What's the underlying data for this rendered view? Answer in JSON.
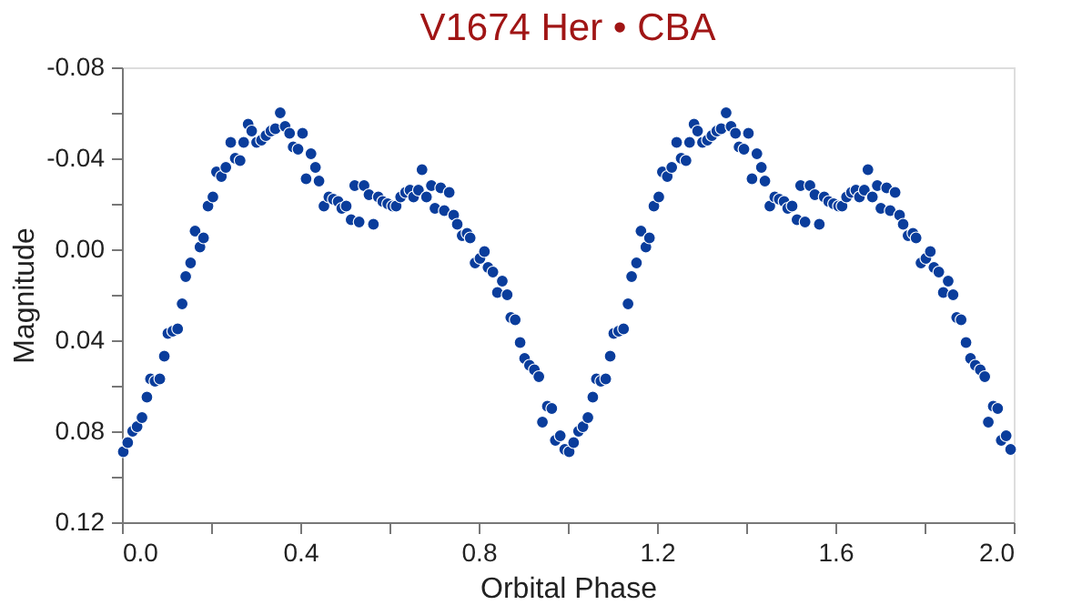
{
  "chart_data": {
    "type": "scatter",
    "title": "V1674 Her • CBA",
    "xlabel": "Orbital Phase",
    "ylabel": "Magnitude",
    "marker": "circle",
    "grid": false,
    "xlim": [
      0,
      2
    ],
    "ylim": [
      0.12,
      -0.08
    ],
    "xticks": [
      {
        "value": 0,
        "label": "0.0"
      },
      {
        "value": 0.2,
        "label": null
      },
      {
        "value": 0.4,
        "label": "0.4"
      },
      {
        "value": 0.6,
        "label": null
      },
      {
        "value": 0.8,
        "label": "0.8"
      },
      {
        "value": 1.0,
        "label": null
      },
      {
        "value": 1.2,
        "label": "1.2"
      },
      {
        "value": 1.4,
        "label": null
      },
      {
        "value": 1.6,
        "label": "1.6"
      },
      {
        "value": 1.8,
        "label": null
      },
      {
        "value": 2.0,
        "label": "2.0"
      }
    ],
    "yticks": [
      {
        "value": -0.08,
        "label": "-0.08"
      },
      {
        "value": -0.06,
        "label": null
      },
      {
        "value": -0.04,
        "label": "-0.04"
      },
      {
        "value": -0.02,
        "label": null
      },
      {
        "value": 0,
        "label": "0.00"
      },
      {
        "value": 0.02,
        "label": null
      },
      {
        "value": 0.04,
        "label": "0.04"
      },
      {
        "value": 0.06,
        "label": null
      },
      {
        "value": 0.08,
        "label": "0.08"
      },
      {
        "value": 0.1,
        "label": null
      },
      {
        "value": 0.12,
        "label": "0.12"
      }
    ],
    "series": [
      {
        "color": "#0a3d9c",
        "x": [
          0.003,
          0.013,
          0.024,
          0.034,
          0.045,
          0.056,
          0.064,
          0.074,
          0.085,
          0.095,
          0.103,
          0.114,
          0.125,
          0.135,
          0.143,
          0.154,
          0.164,
          0.175,
          0.183,
          0.193,
          0.204,
          0.212,
          0.223,
          0.233,
          0.244,
          0.254,
          0.265,
          0.273,
          0.283,
          0.291,
          0.302,
          0.313,
          0.323,
          0.334,
          0.344,
          0.355,
          0.366,
          0.376,
          0.384,
          0.395,
          0.405,
          0.413,
          0.424,
          0.434,
          0.442,
          0.453,
          0.464,
          0.474,
          0.485,
          0.493,
          0.503,
          0.514,
          0.522,
          0.532,
          0.543,
          0.554,
          0.564,
          0.575,
          0.585,
          0.596,
          0.607,
          0.615,
          0.625,
          0.636,
          0.646,
          0.654,
          0.665,
          0.673,
          0.683,
          0.694,
          0.702,
          0.715,
          0.723,
          0.734,
          0.744,
          0.752,
          0.763,
          0.774,
          0.781,
          0.792,
          0.803,
          0.813,
          0.821,
          0.832,
          0.842,
          0.853,
          0.864,
          0.872,
          0.882,
          0.893,
          0.903,
          0.914,
          0.925,
          0.935,
          0.943,
          0.954,
          0.964,
          0.972,
          0.983,
          0.993,
          1.003,
          1.013,
          1.024,
          1.034,
          1.045,
          1.056,
          1.064,
          1.074,
          1.085,
          1.095,
          1.103,
          1.114,
          1.125,
          1.135,
          1.143,
          1.154,
          1.164,
          1.175,
          1.183,
          1.193,
          1.204,
          1.212,
          1.223,
          1.233,
          1.244,
          1.254,
          1.265,
          1.273,
          1.283,
          1.291,
          1.302,
          1.313,
          1.323,
          1.334,
          1.344,
          1.355,
          1.366,
          1.376,
          1.384,
          1.395,
          1.405,
          1.413,
          1.424,
          1.434,
          1.442,
          1.453,
          1.464,
          1.474,
          1.485,
          1.493,
          1.503,
          1.514,
          1.522,
          1.532,
          1.543,
          1.554,
          1.564,
          1.575,
          1.585,
          1.596,
          1.607,
          1.615,
          1.625,
          1.636,
          1.646,
          1.654,
          1.665,
          1.673,
          1.683,
          1.694,
          1.702,
          1.715,
          1.723,
          1.734,
          1.744,
          1.752,
          1.763,
          1.774,
          1.781,
          1.792,
          1.803,
          1.813,
          1.821,
          1.832,
          1.842,
          1.853,
          1.864,
          1.872,
          1.882,
          1.893,
          1.903,
          1.914,
          1.925,
          1.935,
          1.943,
          1.954,
          1.964,
          1.972,
          1.983,
          1.993
        ],
        "values": [
          0.089,
          0.085,
          0.08,
          0.078,
          0.074,
          0.065,
          0.057,
          0.058,
          0.057,
          0.047,
          0.037,
          0.036,
          0.035,
          0.024,
          0.012,
          0.006,
          -0.008,
          -0.001,
          -0.005,
          -0.019,
          -0.023,
          -0.034,
          -0.032,
          -0.036,
          -0.047,
          -0.04,
          -0.039,
          -0.047,
          -0.055,
          -0.052,
          -0.047,
          -0.048,
          -0.05,
          -0.052,
          -0.053,
          -0.06,
          -0.054,
          -0.051,
          -0.045,
          -0.044,
          -0.051,
          -0.031,
          -0.042,
          -0.036,
          -0.03,
          -0.019,
          -0.023,
          -0.022,
          -0.021,
          -0.018,
          -0.019,
          -0.013,
          -0.028,
          -0.012,
          -0.028,
          -0.024,
          -0.011,
          -0.023,
          -0.021,
          -0.02,
          -0.019,
          -0.019,
          -0.023,
          -0.025,
          -0.026,
          -0.023,
          -0.026,
          -0.035,
          -0.023,
          -0.028,
          -0.018,
          -0.027,
          -0.017,
          -0.025,
          -0.015,
          -0.011,
          -0.006,
          -0.007,
          -0.005,
          0.006,
          0.004,
          0.001,
          0.008,
          0.01,
          0.019,
          0.014,
          0.02,
          0.03,
          0.031,
          0.041,
          0.048,
          0.051,
          0.053,
          0.056,
          0.076,
          0.069,
          0.07,
          0.084,
          0.082,
          0.088,
          0.089,
          0.085,
          0.08,
          0.078,
          0.074,
          0.065,
          0.057,
          0.058,
          0.057,
          0.047,
          0.037,
          0.036,
          0.035,
          0.024,
          0.012,
          0.006,
          -0.008,
          -0.001,
          -0.005,
          -0.019,
          -0.023,
          -0.034,
          -0.032,
          -0.036,
          -0.047,
          -0.04,
          -0.039,
          -0.047,
          -0.055,
          -0.052,
          -0.047,
          -0.048,
          -0.05,
          -0.052,
          -0.053,
          -0.06,
          -0.054,
          -0.051,
          -0.045,
          -0.044,
          -0.051,
          -0.031,
          -0.042,
          -0.036,
          -0.03,
          -0.019,
          -0.023,
          -0.022,
          -0.021,
          -0.018,
          -0.019,
          -0.013,
          -0.028,
          -0.012,
          -0.028,
          -0.024,
          -0.011,
          -0.023,
          -0.021,
          -0.02,
          -0.019,
          -0.019,
          -0.023,
          -0.025,
          -0.026,
          -0.023,
          -0.026,
          -0.035,
          -0.023,
          -0.028,
          -0.018,
          -0.027,
          -0.017,
          -0.025,
          -0.015,
          -0.011,
          -0.006,
          -0.007,
          -0.005,
          0.006,
          0.004,
          0.001,
          0.008,
          0.01,
          0.019,
          0.014,
          0.02,
          0.03,
          0.031,
          0.041,
          0.048,
          0.051,
          0.053,
          0.056,
          0.076,
          0.069,
          0.07,
          0.084,
          0.082,
          0.088
        ]
      }
    ]
  }
}
